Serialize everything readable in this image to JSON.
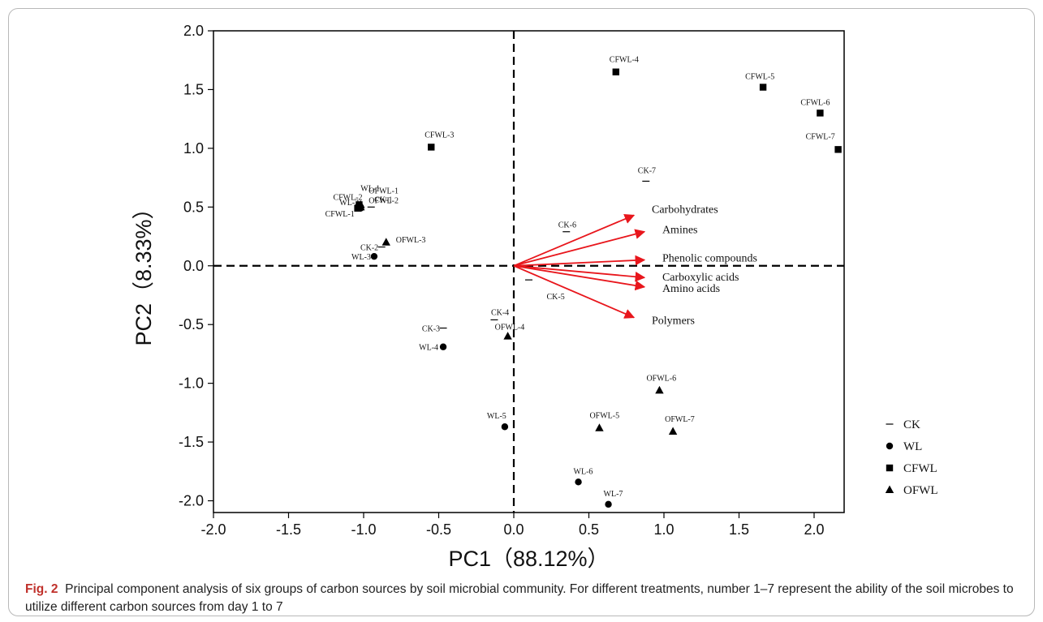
{
  "chart_data": {
    "type": "scatter",
    "xlabel": "PC1（88.12%）",
    "ylabel": "PC2（8.33%）",
    "xlim": [
      -2.0,
      2.2
    ],
    "ylim": [
      -2.1,
      2.0
    ],
    "xticks": [
      -2.0,
      -1.5,
      -1.0,
      -0.5,
      0.0,
      0.5,
      1.0,
      1.5,
      2.0
    ],
    "yticks": [
      -2.0,
      -1.5,
      -1.0,
      -0.5,
      0.0,
      0.5,
      1.0,
      1.5,
      2.0
    ],
    "xtick_labels": [
      "-2.0",
      "-1.5",
      "-1.0",
      "-0.5",
      "0.0",
      "0.5",
      "1.0",
      "1.5",
      "2.0"
    ],
    "ytick_labels": [
      "-2.0",
      "-1.5",
      "-1.0",
      "-0.5",
      "0.0",
      "0.5",
      "1.0",
      "1.5",
      "2.0"
    ],
    "grid": false,
    "reference_lines": "dashed lines at x=0 and y=0",
    "legend_position": "bottom-right outside",
    "series": [
      {
        "name": "CK",
        "marker": "dash",
        "points": [
          {
            "label": "CK-1",
            "x": -0.95,
            "y": 0.5
          },
          {
            "label": "CK-2",
            "x": -0.88,
            "y": 0.16
          },
          {
            "label": "CK-3",
            "x": -0.47,
            "y": -0.53
          },
          {
            "label": "CK-4",
            "x": -0.13,
            "y": -0.46
          },
          {
            "label": "CK-5",
            "x": 0.1,
            "y": -0.12
          },
          {
            "label": "CK-6",
            "x": 0.35,
            "y": 0.29
          },
          {
            "label": "CK-7",
            "x": 0.88,
            "y": 0.72
          }
        ]
      },
      {
        "name": "WL",
        "marker": "circle",
        "points": [
          {
            "label": "WL-1",
            "x": -1.02,
            "y": 0.5
          },
          {
            "label": "WL-2",
            "x": -1.02,
            "y": 0.49
          },
          {
            "label": "WL-3",
            "x": -0.93,
            "y": 0.08
          },
          {
            "label": "WL-4",
            "x": -0.47,
            "y": -0.69
          },
          {
            "label": "WL-5",
            "x": -0.06,
            "y": -1.37
          },
          {
            "label": "WL-6",
            "x": 0.43,
            "y": -1.84
          },
          {
            "label": "WL-7",
            "x": 0.63,
            "y": -2.03
          }
        ]
      },
      {
        "name": "CFWL",
        "marker": "square",
        "points": [
          {
            "label": "CFWL-1",
            "x": -1.04,
            "y": 0.49
          },
          {
            "label": "CFWL-2",
            "x": -1.03,
            "y": 0.52
          },
          {
            "label": "CFWL-3",
            "x": -0.55,
            "y": 1.01
          },
          {
            "label": "CFWL-4",
            "x": 0.68,
            "y": 1.65
          },
          {
            "label": "CFWL-5",
            "x": 1.66,
            "y": 1.52
          },
          {
            "label": "CFWL-6",
            "x": 2.04,
            "y": 1.3
          },
          {
            "label": "CFWL-7",
            "x": 2.16,
            "y": 0.99
          }
        ]
      },
      {
        "name": "OFWL",
        "marker": "triangle",
        "points": [
          {
            "label": "OFWL-1",
            "x": -1.02,
            "y": 0.52
          },
          {
            "label": "OFWL-2",
            "x": -1.02,
            "y": 0.5
          },
          {
            "label": "OFWL-3",
            "x": -0.85,
            "y": 0.2
          },
          {
            "label": "OFWL-4",
            "x": -0.04,
            "y": -0.6
          },
          {
            "label": "OFWL-5",
            "x": 0.57,
            "y": -1.38
          },
          {
            "label": "OFWL-6",
            "x": 0.97,
            "y": -1.06
          },
          {
            "label": "OFWL-7",
            "x": 1.06,
            "y": -1.41
          }
        ]
      }
    ],
    "vectors": [
      {
        "name": "Carbohydrates",
        "x": 0.8,
        "y": 0.43
      },
      {
        "name": "Amines",
        "x": 0.87,
        "y": 0.29
      },
      {
        "name": "Phenolic compounds",
        "x": 0.87,
        "y": 0.05
      },
      {
        "name": "Carboxylic acids",
        "x": 0.87,
        "y": -0.1
      },
      {
        "name": "Amino acids",
        "x": 0.87,
        "y": -0.18
      },
      {
        "name": "Polymers",
        "x": 0.8,
        "y": -0.44
      }
    ],
    "colors": {
      "vectors": "#e8161c",
      "markers": "#000000"
    }
  },
  "caption": {
    "label": "Fig. 2",
    "text": "Principal component analysis of six groups of carbon sources by soil microbial community. For different treatments, number 1–7 represent the ability of the soil microbes to utilize different carbon sources from day 1 to 7"
  }
}
